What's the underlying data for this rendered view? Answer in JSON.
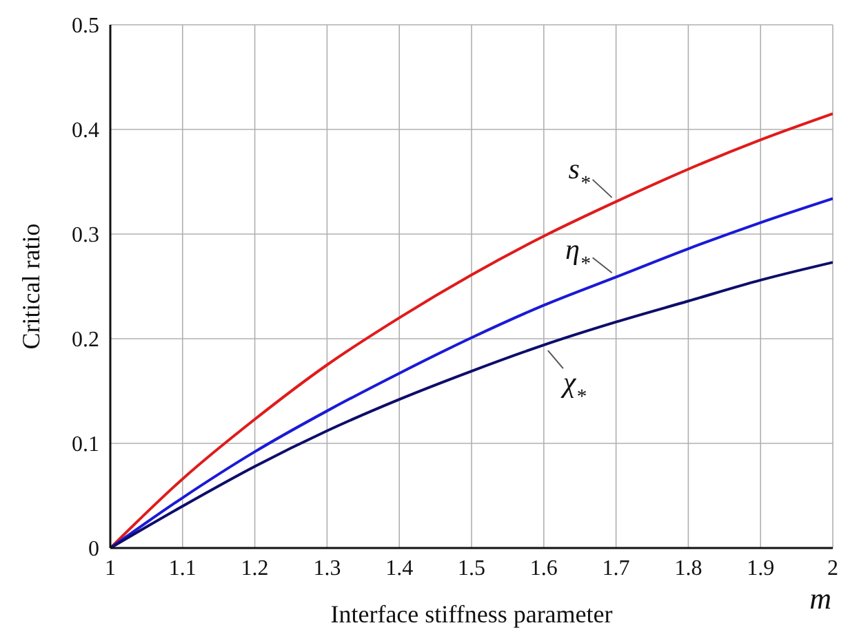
{
  "chart_data": {
    "type": "line",
    "xlabel": "Interface stiffness parameter",
    "ylabel": "Critical ratio",
    "annotations": [
      "m"
    ],
    "x": [
      1,
      1.1,
      1.2,
      1.3,
      1.4,
      1.5,
      1.6,
      1.7,
      1.8,
      1.9,
      2
    ],
    "series": [
      {
        "name": "s$_{*}$",
        "color": "#e01b1b",
        "values": [
          0,
          0.066,
          0.123,
          0.175,
          0.22,
          0.261,
          0.298,
          0.331,
          0.362,
          0.39,
          0.415
        ]
      },
      {
        "name": "η$_{*}$",
        "color": "#1a1ad6",
        "values": [
          0,
          0.048,
          0.092,
          0.131,
          0.167,
          0.201,
          0.232,
          0.259,
          0.286,
          0.311,
          0.334
        ]
      },
      {
        "name": "χ$_{*}$",
        "color": "#0d0d6b",
        "values": [
          0,
          0.04,
          0.078,
          0.112,
          0.142,
          0.169,
          0.194,
          0.216,
          0.236,
          0.256,
          0.273
        ]
      }
    ],
    "xlim": [
      1,
      2
    ],
    "xticks": [
      1,
      1.1,
      1.2,
      1.3,
      1.4,
      1.5,
      1.6,
      1.7,
      1.8,
      1.9,
      2
    ],
    "ylim": [
      0,
      0.5
    ],
    "yticks": [
      0,
      0.1,
      0.2,
      0.3,
      0.4,
      0.5
    ],
    "grid": true,
    "marker": "none",
    "line_style": "solid"
  }
}
